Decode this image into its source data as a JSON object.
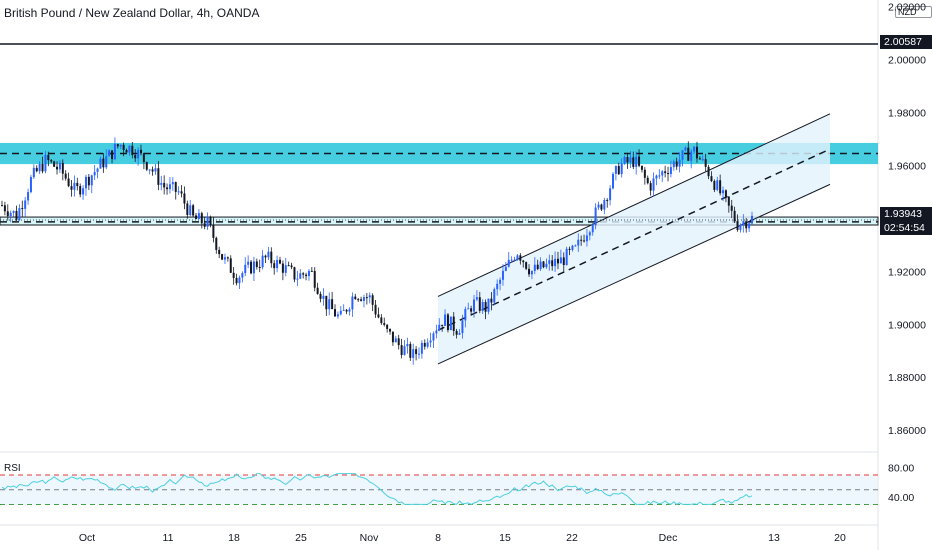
{
  "header": {
    "title": "British Pound / New Zealand Dollar, 4h, OANDA",
    "currency": "NZD"
  },
  "price_tags": {
    "resistance": "2.00587",
    "last": "1.93943",
    "countdown": "02:54:54"
  },
  "rsi": {
    "label": "RSI",
    "ticks": [
      "80.00",
      "40.00"
    ],
    "upper": 70,
    "middle": 50,
    "lower": 30
  },
  "colors": {
    "bull": "#2962ff",
    "bear": "#131722",
    "zone": "#26c6da",
    "channel_fill": "#e3f2fd",
    "rsi_line": "#4dd0e1",
    "rsi_upper": "#e53935",
    "rsi_lower": "#43a047"
  },
  "chart_data": {
    "type": "candlestick",
    "yticks": [
      "2.02000",
      "2.00000",
      "1.98000",
      "1.96000",
      "1.94000",
      "1.92000",
      "1.90000",
      "1.88000",
      "1.86000"
    ],
    "ylim": [
      1.8525,
      2.0225
    ],
    "xticks": [
      "Oct",
      "11",
      "18",
      "25",
      "Nov",
      "8",
      "15",
      "22",
      "Dec",
      "13",
      "20"
    ],
    "resistance_line": 2.00587,
    "zones": [
      [
        1.9605,
        1.9685
      ],
      [
        1.9375,
        1.9405
      ]
    ],
    "dashed_levels": [
      1.9645,
      1.9387
    ],
    "channel": {
      "lower": [
        [
          1.885,
          "Nov 8"
        ],
        [
          1.939,
          "Dec 10"
        ]
      ],
      "upper": [
        [
          1.9105,
          "Nov 8"
        ],
        [
          1.9795,
          "Dec 17"
        ]
      ]
    },
    "path": [
      1.945,
      1.941,
      1.955,
      1.962,
      1.958,
      1.95,
      1.956,
      1.962,
      1.968,
      1.966,
      1.96,
      1.952,
      1.95,
      1.94,
      1.938,
      1.925,
      1.918,
      1.922,
      1.925,
      1.922,
      1.918,
      1.92,
      1.908,
      1.902,
      1.912,
      1.91,
      1.898,
      1.892,
      1.888,
      1.896,
      1.902,
      1.898,
      1.908,
      1.906,
      1.918,
      1.928,
      1.92,
      1.922,
      1.924,
      1.928,
      1.938,
      1.948,
      1.96,
      1.962,
      1.952,
      1.958,
      1.962,
      1.966,
      1.958,
      1.948,
      1.938,
      1.94
    ]
  }
}
